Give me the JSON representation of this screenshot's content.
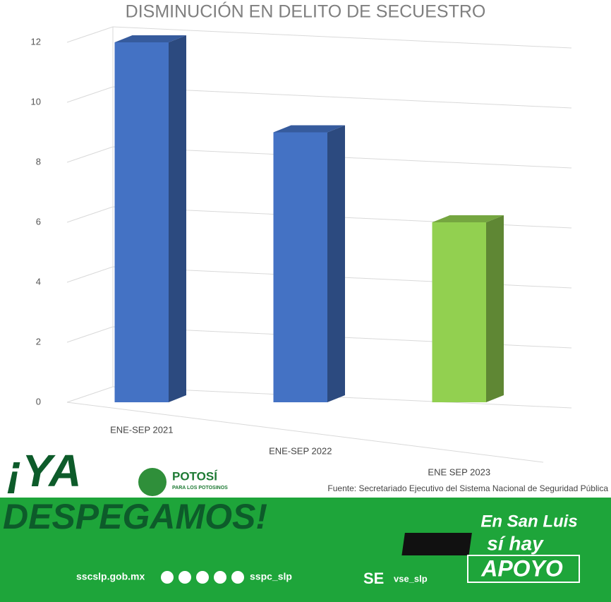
{
  "chart_data": {
    "type": "bar3d",
    "title": "DISMINUCIÓN EN DELITO DE SECUESTRO",
    "categories": [
      "ENE-SEP 2021",
      "ENE-SEP 2022",
      "ENE SEP 2023"
    ],
    "values": [
      12,
      9,
      6
    ],
    "colors": [
      "#4472c4",
      "#4472c4",
      "#92d050"
    ],
    "ylim": [
      0,
      12
    ],
    "yticks": [
      0,
      2,
      4,
      6,
      8,
      10,
      12
    ],
    "grid": true,
    "source": "Fuente: Secretariado Ejecutivo del Sistema Nacional de Seguridad Pública"
  },
  "footer": {
    "slogan_top": "¡YA",
    "slogan_bottom": "DESPEGAMOS!",
    "logo_title": "POTOSÍ",
    "logo_subtitle": "PARA LOS POTOSINOS",
    "website": "sscslp.gob.mx",
    "social": "sspc_slp",
    "se_logo": "SE",
    "se_handle": "vse_slp",
    "badge_line1": "En San Luis",
    "badge_line2": "sí hay",
    "badge_line3": "APOYO"
  }
}
